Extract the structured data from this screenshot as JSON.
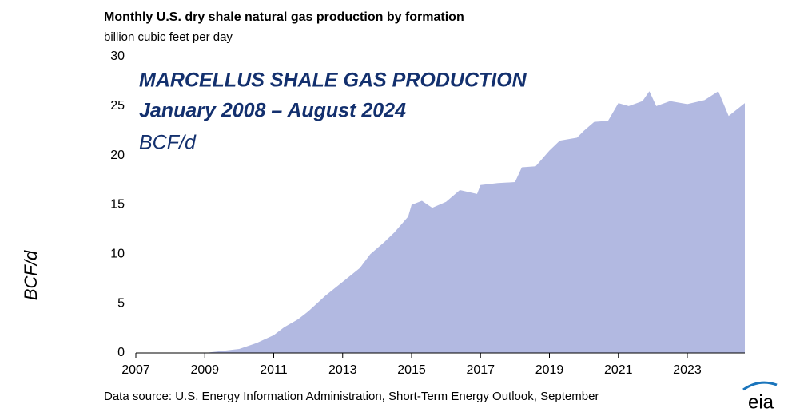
{
  "chart_data": {
    "type": "area",
    "title": "Monthly U.S. dry shale natural gas production by formation",
    "subtitle": "billion cubic feet per day",
    "y_label": "BCF/d",
    "source": "Data source: U.S. Energy Information Administration, Short-Term Energy Outlook, September",
    "logo": "eia",
    "annotations": [
      "MARCELLUS SHALE GAS PRODUCTION",
      "January 2008 – August 2024",
      "BCF/d"
    ],
    "color": "#b2b9e1",
    "x": [
      2007.0,
      2009.0,
      2009.5,
      2010.0,
      2010.5,
      2011.0,
      2011.3,
      2011.7,
      2012.0,
      2012.5,
      2013.0,
      2013.5,
      2013.8,
      2014.2,
      2014.5,
      2014.9,
      2015.0,
      2015.3,
      2015.6,
      2016.0,
      2016.4,
      2016.9,
      2017.0,
      2017.5,
      2018.0,
      2018.2,
      2018.6,
      2019.0,
      2019.3,
      2019.8,
      2020.0,
      2020.3,
      2020.7,
      2021.0,
      2021.3,
      2021.7,
      2021.9,
      2022.1,
      2022.5,
      2023.0,
      2023.5,
      2023.9,
      2024.2,
      2024.67
    ],
    "values": [
      0,
      0,
      0.2,
      0.4,
      1.0,
      1.8,
      2.6,
      3.4,
      4.2,
      5.8,
      7.2,
      8.6,
      10.0,
      11.2,
      12.2,
      13.8,
      15.0,
      15.4,
      14.7,
      15.3,
      16.5,
      16.1,
      17.0,
      17.2,
      17.3,
      18.8,
      18.9,
      20.5,
      21.5,
      21.8,
      22.5,
      23.4,
      23.5,
      25.3,
      25.0,
      25.5,
      26.5,
      25.0,
      25.5,
      25.2,
      25.6,
      26.5,
      24.0,
      25.3
    ],
    "xlim": [
      2007,
      2024.67
    ],
    "ylim": [
      0,
      30
    ],
    "xticks": [
      2007,
      2009,
      2011,
      2013,
      2015,
      2017,
      2019,
      2021,
      2023
    ],
    "yticks": [
      0,
      5,
      10,
      15,
      20,
      25,
      30
    ]
  }
}
